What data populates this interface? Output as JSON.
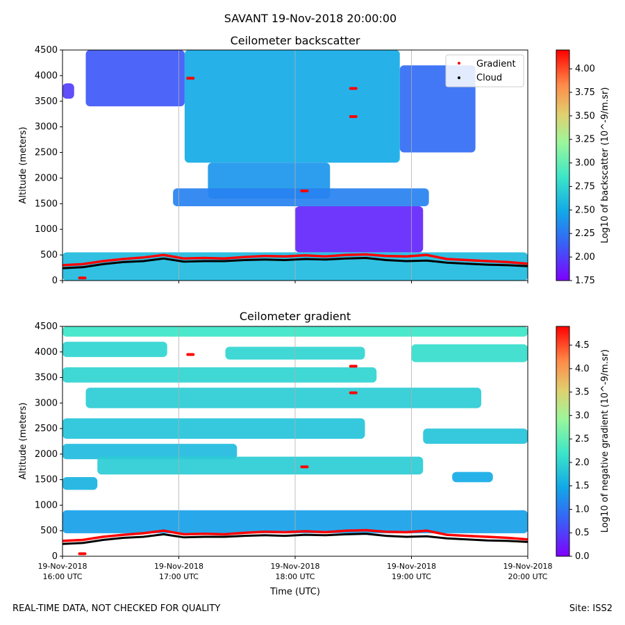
{
  "figure": {
    "suptitle": "SAVANT 19-Nov-2018 20:00:00",
    "footer_left": "REAL-TIME DATA, NOT CHECKED FOR QUALITY",
    "footer_right": "Site: ISS2",
    "xlabel": "Time (UTC)"
  },
  "chart_data": [
    {
      "type": "heatmap",
      "title": "Ceilometer backscatter",
      "ylabel": "Altitude (meters)",
      "ylim": [
        0,
        4500
      ],
      "yticks": [
        "0",
        "500",
        "1000",
        "1500",
        "2000",
        "2500",
        "3000",
        "3500",
        "4000",
        "4500"
      ],
      "xticks": [
        {
          "line1": "19-Nov-2018",
          "line2": "16:00 UTC"
        },
        {
          "line1": "19-Nov-2018",
          "line2": "17:00 UTC"
        },
        {
          "line1": "19-Nov-2018",
          "line2": "18:00 UTC"
        },
        {
          "line1": "19-Nov-2018",
          "line2": "19:00 UTC"
        },
        {
          "line1": "19-Nov-2018",
          "line2": "20:00 UTC"
        }
      ],
      "xlim_hours_utc": [
        16,
        20
      ],
      "colorbar": {
        "label": "Log10 of backscatter (10^-9/m.sr)",
        "range": [
          1.75,
          4.2
        ],
        "ticks": [
          "1.75",
          "2.00",
          "2.25",
          "2.50",
          "2.75",
          "3.00",
          "3.25",
          "3.50",
          "3.75",
          "4.00"
        ]
      },
      "legend": {
        "placement": "top-right",
        "entries": [
          "Gradient",
          "Cloud"
        ],
        "colors": [
          "#ff0000",
          "#000000"
        ]
      },
      "regions": [
        {
          "x": [
            17.05,
            18.9
          ],
          "y": [
            2300,
            4500
          ],
          "value": 2.5
        },
        {
          "x": [
            16.2,
            17.05
          ],
          "y": [
            3400,
            4500
          ],
          "value": 2.1
        },
        {
          "x": [
            18.9,
            19.55
          ],
          "y": [
            2500,
            4200
          ],
          "value": 2.2
        },
        {
          "x": [
            17.25,
            18.3
          ],
          "y": [
            1600,
            2300
          ],
          "value": 2.4
        },
        {
          "x": [
            16.95,
            19.15
          ],
          "y": [
            1450,
            1800
          ],
          "value": 2.3
        },
        {
          "x": [
            18.0,
            19.1
          ],
          "y": [
            550,
            1450
          ],
          "value": 1.9
        },
        {
          "x": [
            16.0,
            16.1
          ],
          "y": [
            3550,
            3850
          ],
          "value": 2.0
        },
        {
          "x": [
            16.0,
            20.0
          ],
          "y": [
            0,
            550
          ],
          "value": 2.6
        }
      ],
      "gradient_layer_m": [
        300,
        320,
        380,
        420,
        450,
        500,
        430,
        440,
        430,
        460,
        480,
        470,
        490,
        470,
        500,
        510,
        480,
        470,
        500,
        420,
        400,
        380,
        360,
        330
      ],
      "cloud_layer_m": [
        240,
        260,
        320,
        360,
        380,
        430,
        370,
        380,
        380,
        400,
        410,
        400,
        420,
        410,
        430,
        440,
        400,
        380,
        390,
        350,
        330,
        310,
        300,
        280
      ],
      "gradient_points": [
        {
          "x": 16.17,
          "y": 50
        },
        {
          "x": 17.1,
          "y": 3950
        },
        {
          "x": 18.08,
          "y": 1750
        },
        {
          "x": 18.5,
          "y": 3200
        },
        {
          "x": 18.5,
          "y": 3750
        }
      ]
    },
    {
      "type": "heatmap",
      "title": "Ceilometer gradient",
      "ylabel": "Altitude (meters)",
      "ylim": [
        0,
        4500
      ],
      "yticks": [
        "0",
        "500",
        "1000",
        "1500",
        "2000",
        "2500",
        "3000",
        "3500",
        "4000",
        "4500"
      ],
      "xticks": [
        {
          "line1": "19-Nov-2018",
          "line2": "16:00 UTC"
        },
        {
          "line1": "19-Nov-2018",
          "line2": "17:00 UTC"
        },
        {
          "line1": "19-Nov-2018",
          "line2": "18:00 UTC"
        },
        {
          "line1": "19-Nov-2018",
          "line2": "19:00 UTC"
        },
        {
          "line1": "19-Nov-2018",
          "line2": "20:00 UTC"
        }
      ],
      "xlim_hours_utc": [
        16,
        20
      ],
      "colorbar": {
        "label": "Log10 of negative gradient (10^-9/m.sr)",
        "range": [
          0.0,
          4.9
        ],
        "ticks": [
          "0.0",
          "0.5",
          "1.0",
          "1.5",
          "2.0",
          "2.5",
          "3.0",
          "3.5",
          "4.0",
          "4.5"
        ]
      },
      "regions": [
        {
          "x": [
            16.0,
            20.0
          ],
          "y": [
            4300,
            4500
          ],
          "value": 2.2
        },
        {
          "x": [
            16.0,
            16.9
          ],
          "y": [
            3900,
            4200
          ],
          "value": 2.0
        },
        {
          "x": [
            17.4,
            18.6
          ],
          "y": [
            3850,
            4100
          ],
          "value": 2.0
        },
        {
          "x": [
            19.0,
            20.0
          ],
          "y": [
            3800,
            4150
          ],
          "value": 2.1
        },
        {
          "x": [
            16.0,
            18.7
          ],
          "y": [
            3400,
            3700
          ],
          "value": 2.0
        },
        {
          "x": [
            16.2,
            19.6
          ],
          "y": [
            2900,
            3300
          ],
          "value": 1.9
        },
        {
          "x": [
            16.0,
            18.6
          ],
          "y": [
            2300,
            2700
          ],
          "value": 1.8
        },
        {
          "x": [
            16.0,
            17.5
          ],
          "y": [
            1900,
            2200
          ],
          "value": 1.7
        },
        {
          "x": [
            19.1,
            20.0
          ],
          "y": [
            2200,
            2500
          ],
          "value": 1.8
        },
        {
          "x": [
            16.3,
            19.1
          ],
          "y": [
            1600,
            1950
          ],
          "value": 1.9
        },
        {
          "x": [
            16.0,
            16.3
          ],
          "y": [
            1300,
            1550
          ],
          "value": 1.6
        },
        {
          "x": [
            19.35,
            19.7
          ],
          "y": [
            1450,
            1650
          ],
          "value": 1.5
        },
        {
          "x": [
            16.0,
            20.0
          ],
          "y": [
            450,
            900
          ],
          "value": 1.4
        }
      ],
      "gradient_layer_m": [
        300,
        320,
        380,
        420,
        450,
        500,
        430,
        440,
        430,
        460,
        480,
        470,
        490,
        470,
        500,
        510,
        480,
        470,
        500,
        420,
        400,
        380,
        360,
        330
      ],
      "cloud_layer_m": [
        240,
        260,
        320,
        360,
        380,
        430,
        370,
        380,
        380,
        400,
        410,
        400,
        420,
        410,
        430,
        440,
        400,
        380,
        390,
        350,
        330,
        310,
        300,
        280
      ],
      "gradient_points": [
        {
          "x": 16.17,
          "y": 50
        },
        {
          "x": 17.1,
          "y": 3950
        },
        {
          "x": 18.08,
          "y": 1750
        },
        {
          "x": 18.5,
          "y": 3200
        },
        {
          "x": 18.5,
          "y": 3720
        }
      ]
    }
  ]
}
